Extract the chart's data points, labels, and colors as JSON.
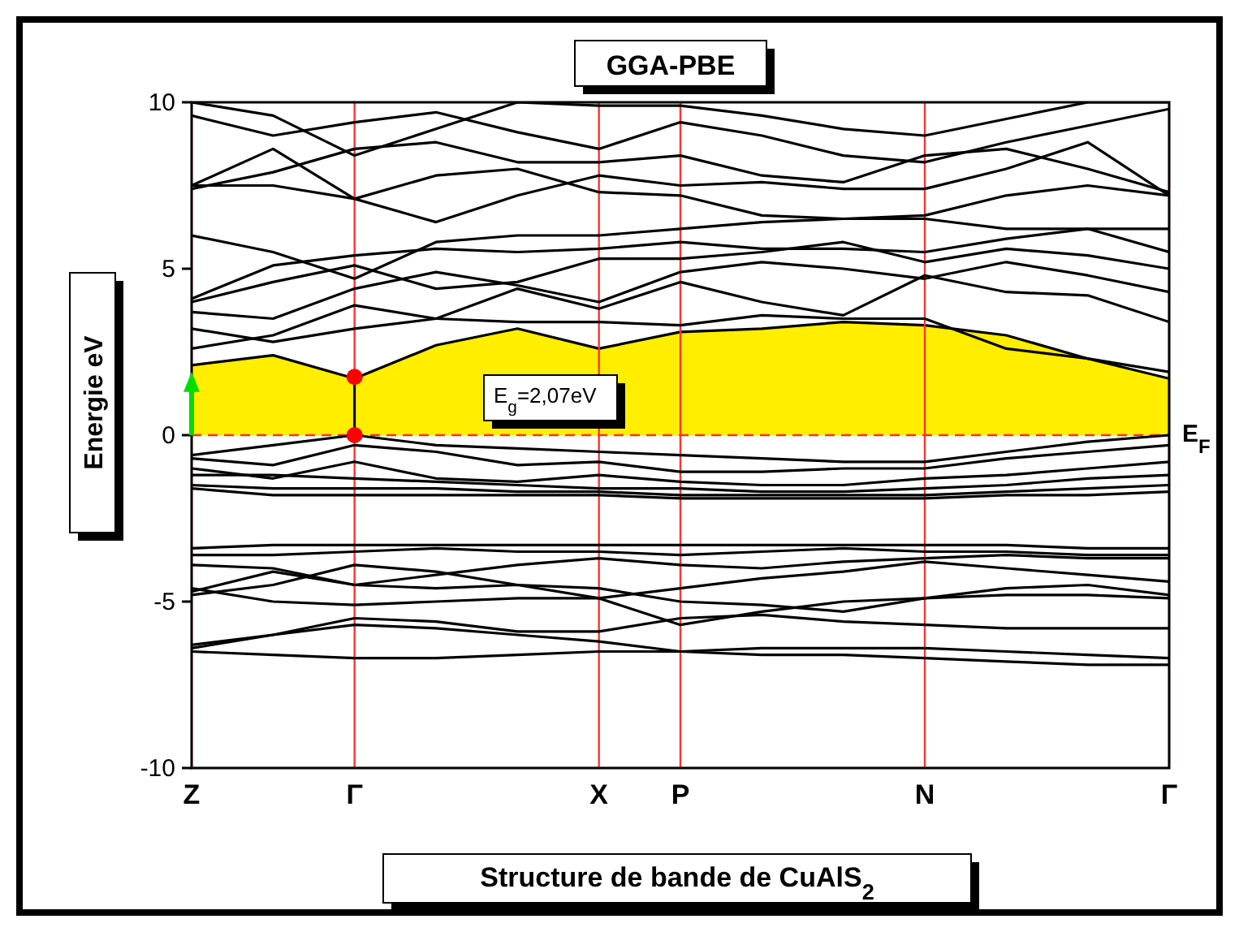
{
  "chart_data": {
    "type": "line",
    "title": "GGA-PBE",
    "xlabel": "Structure de bande de CuAlS$_{2}$",
    "ylabel": "Energie eV",
    "annotations": [
      "E$_{g}$=2,07eV"
    ],
    "categories": [
      "Z",
      null,
      "Γ",
      null,
      null,
      "X",
      "P",
      null,
      null,
      "N",
      null,
      null,
      "Γ"
    ],
    "ylim": [
      -10,
      10
    ],
    "yticks": [
      -10,
      -5,
      0,
      5,
      10
    ],
    "grid": "x",
    "ref_lines": [
      {
        "axis": "y",
        "value": 0,
        "label": "E$_{F}$",
        "color": "#ff3300",
        "line_style": "dashed"
      }
    ],
    "series": [
      {
        "type": "area",
        "color": "#ffee00",
        "values": [
          2.1,
          2.4,
          1.7,
          2.7,
          3.2,
          2.6,
          3.1,
          3.2,
          3.4,
          3.3,
          3.0,
          2.3,
          1.7
        ]
      },
      {
        "color": "#000000",
        "values": [
          2.6,
          3.0,
          3.9,
          3.5,
          3.4,
          3.4,
          3.3,
          3.6,
          3.5,
          3.5,
          2.6,
          2.3,
          1.9
        ]
      },
      {
        "color": "#000000",
        "values": [
          3.2,
          2.8,
          3.2,
          3.5,
          4.4,
          3.8,
          4.6,
          4.0,
          3.6,
          4.8,
          4.3,
          4.2,
          3.4
        ]
      },
      {
        "color": "#000000",
        "values": [
          3.7,
          3.5,
          4.4,
          4.9,
          4.5,
          4.0,
          4.9,
          5.2,
          5.0,
          4.7,
          5.2,
          4.8,
          4.3
        ]
      },
      {
        "color": "#000000",
        "values": [
          4.0,
          4.6,
          5.1,
          4.4,
          4.6,
          5.3,
          5.3,
          5.5,
          5.8,
          5.2,
          5.6,
          5.4,
          5.0
        ]
      },
      {
        "color": "#000000",
        "values": [
          4.1,
          5.1,
          5.4,
          5.6,
          5.5,
          5.6,
          5.8,
          5.6,
          5.6,
          5.5,
          5.9,
          6.2,
          5.5
        ]
      },
      {
        "color": "#000000",
        "values": [
          6.0,
          5.5,
          4.7,
          5.8,
          6.0,
          6.0,
          6.2,
          6.4,
          6.5,
          6.5,
          6.2,
          6.2,
          6.2
        ]
      },
      {
        "color": "#000000",
        "values": [
          7.5,
          7.5,
          7.1,
          7.8,
          8.0,
          7.3,
          7.2,
          6.6,
          6.5,
          6.6,
          7.2,
          7.5,
          7.2
        ]
      },
      {
        "color": "#000000",
        "values": [
          7.5,
          8.6,
          7.1,
          6.4,
          7.2,
          7.8,
          7.5,
          7.6,
          7.4,
          7.4,
          8.0,
          8.8,
          7.2
        ]
      },
      {
        "color": "#000000",
        "values": [
          7.4,
          7.9,
          8.6,
          8.8,
          8.2,
          8.2,
          8.4,
          7.8,
          7.6,
          8.4,
          8.6,
          8.0,
          7.3
        ]
      },
      {
        "color": "#000000",
        "values": [
          9.6,
          9.0,
          9.4,
          9.7,
          9.1,
          8.6,
          9.4,
          9.0,
          8.4,
          8.2,
          8.8,
          9.3,
          9.8
        ]
      },
      {
        "color": "#000000",
        "values": [
          10.0,
          9.6,
          8.4,
          9.2,
          10.0,
          9.9,
          9.9,
          9.6,
          9.2,
          9.0,
          9.5,
          10.0,
          10.0
        ]
      },
      {
        "color": "#000000",
        "values": [
          -0.6,
          -0.3,
          0,
          -0.3,
          -0.4,
          -0.5,
          -0.6,
          -0.7,
          -0.8,
          -0.8,
          -0.5,
          -0.2,
          0
        ]
      },
      {
        "color": "#000000",
        "values": [
          -0.7,
          -0.9,
          -0.3,
          -0.5,
          -0.9,
          -0.8,
          -1.1,
          -1.1,
          -1.0,
          -1.0,
          -0.7,
          -0.5,
          -0.3
        ]
      },
      {
        "color": "#000000",
        "values": [
          -1.0,
          -1.3,
          -0.8,
          -1.3,
          -1.4,
          -1.2,
          -1.4,
          -1.5,
          -1.5,
          -1.3,
          -1.2,
          -1.0,
          -0.8
        ]
      },
      {
        "color": "#000000",
        "values": [
          -1.2,
          -1.2,
          -1.3,
          -1.4,
          -1.5,
          -1.6,
          -1.6,
          -1.7,
          -1.7,
          -1.6,
          -1.5,
          -1.3,
          -1.2
        ]
      },
      {
        "color": "#000000",
        "values": [
          -1.5,
          -1.6,
          -1.6,
          -1.6,
          -1.7,
          -1.7,
          -1.8,
          -1.8,
          -1.8,
          -1.8,
          -1.7,
          -1.6,
          -1.5
        ]
      },
      {
        "color": "#000000",
        "values": [
          -1.6,
          -1.8,
          -1.8,
          -1.8,
          -1.8,
          -1.8,
          -1.9,
          -1.9,
          -1.9,
          -1.9,
          -1.8,
          -1.8,
          -1.7
        ]
      },
      {
        "color": "#000000",
        "values": [
          -3.4,
          -3.3,
          -3.3,
          -3.3,
          -3.3,
          -3.3,
          -3.3,
          -3.3,
          -3.3,
          -3.3,
          -3.3,
          -3.4,
          -3.4
        ]
      },
      {
        "color": "#000000",
        "values": [
          -3.6,
          -3.6,
          -3.5,
          -3.4,
          -3.5,
          -3.5,
          -3.6,
          -3.5,
          -3.4,
          -3.5,
          -3.5,
          -3.6,
          -3.6
        ]
      },
      {
        "color": "#000000",
        "values": [
          -3.9,
          -4.0,
          -4.5,
          -4.2,
          -3.9,
          -3.7,
          -3.9,
          -4.0,
          -3.8,
          -3.7,
          -3.6,
          -3.7,
          -3.7
        ]
      },
      {
        "color": "#000000",
        "values": [
          -4.7,
          -4.1,
          -4.5,
          -4.6,
          -4.5,
          -4.9,
          -4.6,
          -4.3,
          -4.1,
          -3.8,
          -4.0,
          -4.2,
          -4.4
        ]
      },
      {
        "color": "#000000",
        "values": [
          -4.8,
          -4.5,
          -3.9,
          -4.1,
          -4.5,
          -4.6,
          -5.0,
          -5.1,
          -5.3,
          -4.9,
          -4.6,
          -4.5,
          -4.8
        ]
      },
      {
        "color": "#000000",
        "values": [
          -4.6,
          -5.0,
          -5.1,
          -5.0,
          -4.9,
          -4.9,
          -5.7,
          -5.3,
          -5.0,
          -4.9,
          -4.8,
          -4.8,
          -4.9
        ]
      },
      {
        "color": "#000000",
        "values": [
          -6.3,
          -6.0,
          -5.5,
          -5.6,
          -5.9,
          -5.9,
          -5.5,
          -5.4,
          -5.6,
          -5.7,
          -5.8,
          -5.8,
          -5.8
        ]
      },
      {
        "color": "#000000",
        "values": [
          -6.4,
          -6.0,
          -5.7,
          -5.8,
          -6.0,
          -6.2,
          -6.5,
          -6.4,
          -6.4,
          -6.4,
          -6.5,
          -6.6,
          -6.7
        ]
      },
      {
        "color": "#000000",
        "values": [
          -6.5,
          -6.6,
          -6.7,
          -6.7,
          -6.6,
          -6.5,
          -6.5,
          -6.6,
          -6.6,
          -6.7,
          -6.8,
          -6.9,
          -6.9
        ]
      },
      {
        "type": "scatter",
        "color": "#ff0000",
        "marker": "circle",
        "x": [
          "Γ",
          "Γ"
        ],
        "values": [
          0,
          1.75
        ]
      }
    ]
  }
}
